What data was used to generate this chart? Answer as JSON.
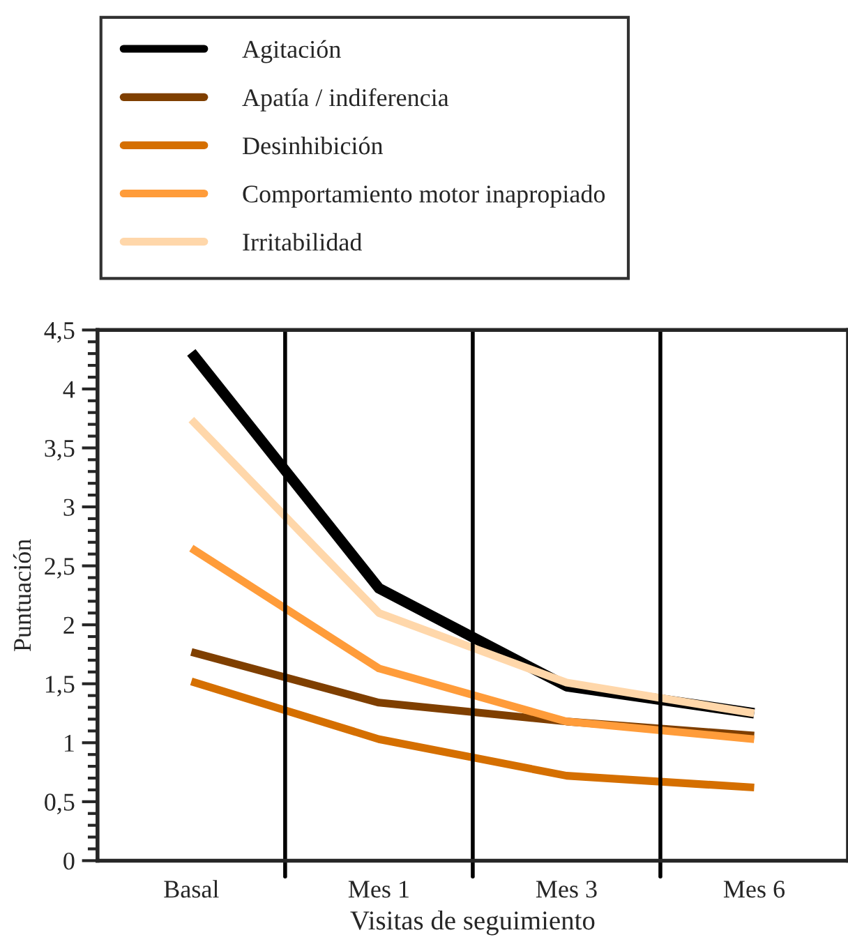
{
  "chart_data": {
    "type": "line",
    "xlabel": "Visitas de seguimiento",
    "ylabel": "Puntuación",
    "categories": [
      "Basal",
      "Mes 1",
      "Mes 3",
      "Mes 6"
    ],
    "series": [
      {
        "name": "Agitación",
        "color": "#000000",
        "values": [
          4.31,
          2.31,
          1.48,
          1.25
        ]
      },
      {
        "name": "Apatía / indiferencia",
        "color": "#7f3f00",
        "values": [
          1.77,
          1.34,
          1.18,
          1.06
        ]
      },
      {
        "name": "Desinhibición",
        "color": "#d56f00",
        "values": [
          1.52,
          1.03,
          0.72,
          0.62
        ]
      },
      {
        "name": "Comportamiento motor inapropiado",
        "color": "#ff9c3a",
        "values": [
          2.65,
          1.63,
          1.18,
          1.03
        ]
      },
      {
        "name": "Irritabilidad",
        "color": "#ffd7aa",
        "values": [
          3.74,
          2.1,
          1.51,
          1.25
        ]
      }
    ],
    "ylim": [
      0,
      4.5
    ],
    "yticks": [
      0,
      {
        "value": 0.5,
        "label": "0,5"
      },
      1,
      {
        "value": 1.5,
        "label": "1,5"
      },
      2,
      {
        "value": 2.5,
        "label": "2,5"
      },
      3,
      {
        "value": 3.5,
        "label": "3,5"
      },
      4,
      {
        "value": 4.5,
        "label": "4,5"
      }
    ],
    "grid": "x",
    "legend": "top",
    "marker": "none",
    "line_style": "solid"
  }
}
